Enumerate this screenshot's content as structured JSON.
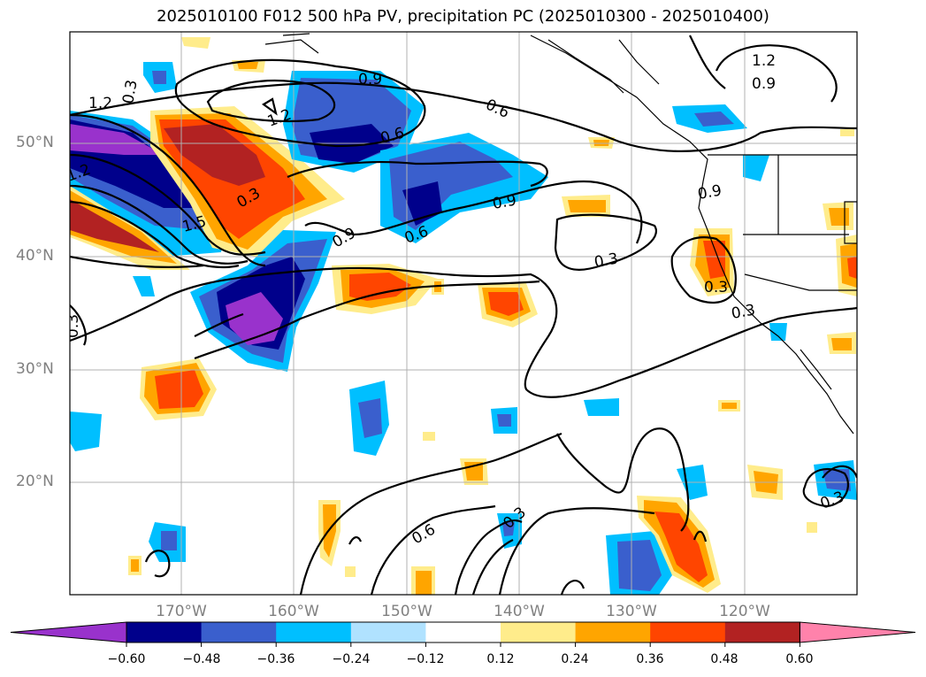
{
  "title": "2025010100 F012 500 hPa PV, precipitation PC (2025010300 - 2025010400)",
  "lat_labels": [
    "50°N",
    "40°N",
    "30°N",
    "20°N"
  ],
  "lon_labels": [
    "170°W",
    "160°W",
    "150°W",
    "140°W",
    "130°W",
    "120°W"
  ],
  "contour_labels": [
    "1.2",
    "0.3",
    "0.9",
    "0.6",
    "1.2",
    "0.6",
    "1.2",
    "1.5",
    "0.3",
    "0.9",
    "0.9",
    "0.6",
    "0.3",
    "0.9",
    "0.3",
    "0.3",
    "0.3",
    "0.6",
    "0.3",
    "1.2",
    "0.9",
    "0.3"
  ],
  "colorbar": {
    "tick_labels": [
      "−0.60",
      "−0.48",
      "−0.36",
      "−0.24",
      "−0.12",
      "0.12",
      "0.24",
      "0.36",
      "0.48",
      "0.60"
    ],
    "colors": [
      "#9932cc",
      "#00008b",
      "#3a5fcd",
      "#00bfff",
      "#b0e2ff",
      "#ffffff",
      "#ffec8b",
      "#ffa500",
      "#ff4500",
      "#b22222",
      "#ff82ab"
    ]
  }
}
